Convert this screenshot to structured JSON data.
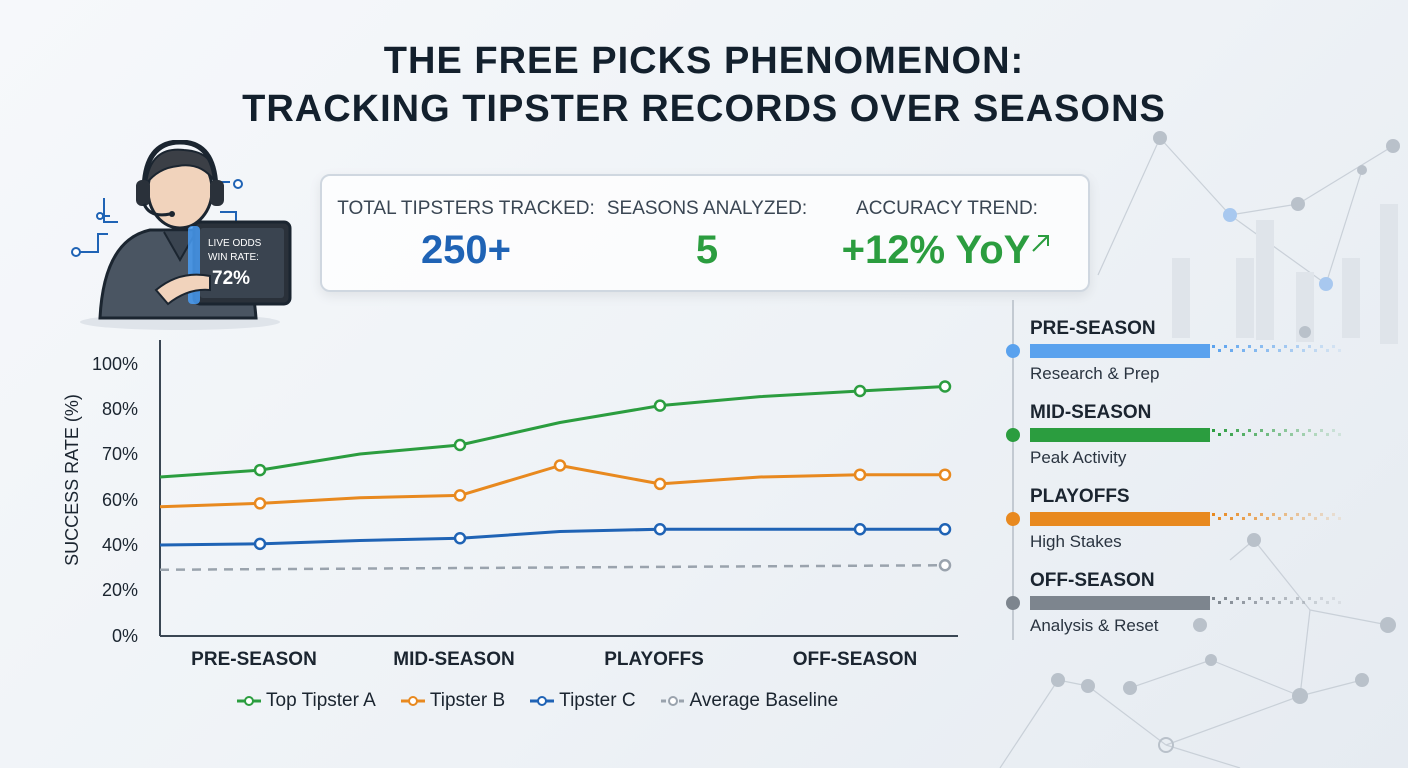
{
  "title": {
    "line1": "THE FREE PICKS PHENOMENON:",
    "line2": "TRACKING TIPSTER RECORDS OVER SEASONS"
  },
  "stats": {
    "total_label": "TOTAL TIPSTERS TRACKED:",
    "total_value": "250+",
    "seasons_label": "SEASONS ANALYZED:",
    "seasons_value": "5",
    "trend_label": "ACCURACY TREND:",
    "trend_value": "+12% YoY",
    "trend_icon": "arrow-up-right-icon",
    "colors": {
      "total": "#1f63b5",
      "seasons": "#2b9d3f",
      "trend": "#2b9d3f"
    }
  },
  "illustration": {
    "screen_line1": "LIVE ODDS",
    "screen_line2": "WIN RATE:",
    "screen_value": "72%"
  },
  "chart_data": {
    "type": "line",
    "ylabel": "SUCCESS RATE (%)",
    "xlabel": "",
    "y_tick_labels": [
      "0%",
      "20%",
      "40%",
      "60%",
      "70%",
      "80%",
      "100%"
    ],
    "categories": [
      "PRE-SEASON",
      "MID-SEASON",
      "PLAYOFFS",
      "OFF-SEASON"
    ],
    "x_range": [
      0,
      8
    ],
    "marker_note": "points at x 0.5..8 in eighths of the season axis",
    "series": [
      {
        "name": "Top Tipster A",
        "color": "#2b9d3f",
        "x": [
          0,
          1,
          2,
          3,
          4,
          5,
          6,
          7,
          7.85
        ],
        "y": [
          65,
          66.5,
          70,
          72,
          77,
          81.5,
          85.5,
          88,
          90
        ],
        "markers": [
          1,
          3,
          5,
          7,
          7.85
        ]
      },
      {
        "name": "Tipster B",
        "color": "#e8891f",
        "x": [
          0,
          1,
          2,
          3,
          4,
          5,
          6,
          7,
          7.85
        ],
        "y": [
          57,
          58.5,
          60.5,
          61,
          67.5,
          63.5,
          65,
          65.5,
          65.5
        ],
        "markers": [
          1,
          3,
          4,
          5,
          7,
          7.85
        ]
      },
      {
        "name": "Tipster C",
        "color": "#1f63b5",
        "x": [
          0,
          1,
          2,
          3,
          4,
          5,
          6,
          7,
          7.85
        ],
        "y": [
          40,
          40.5,
          42,
          43,
          46,
          47,
          47,
          47,
          47
        ],
        "markers": [
          1,
          3,
          5,
          7,
          7.85
        ]
      },
      {
        "name": "Average Baseline",
        "color": "#9aa3ad",
        "dashed": true,
        "x": [
          0,
          7.85
        ],
        "y": [
          29,
          31
        ],
        "markers": [
          7.85
        ]
      }
    ],
    "legend_position": "bottom",
    "grid": false
  },
  "phases": [
    {
      "title": "PRE-SEASON",
      "subtitle": "Research & Prep",
      "color": "#5aa2ee"
    },
    {
      "title": "MID-SEASON",
      "subtitle": "Peak Activity",
      "color": "#2b9d3f"
    },
    {
      "title": "PLAYOFFS",
      "subtitle": "High Stakes",
      "color": "#e8891f"
    },
    {
      "title": "OFF-SEASON",
      "subtitle": "Analysis & Reset",
      "color": "#7d858e"
    }
  ],
  "legend": [
    {
      "label": "Top Tipster A",
      "color": "#2b9d3f",
      "dashed": false
    },
    {
      "label": "Tipster B",
      "color": "#e8891f",
      "dashed": false
    },
    {
      "label": "Tipster C",
      "color": "#1f63b5",
      "dashed": false
    },
    {
      "label": "Average Baseline",
      "color": "#9aa3ad",
      "dashed": true
    }
  ]
}
